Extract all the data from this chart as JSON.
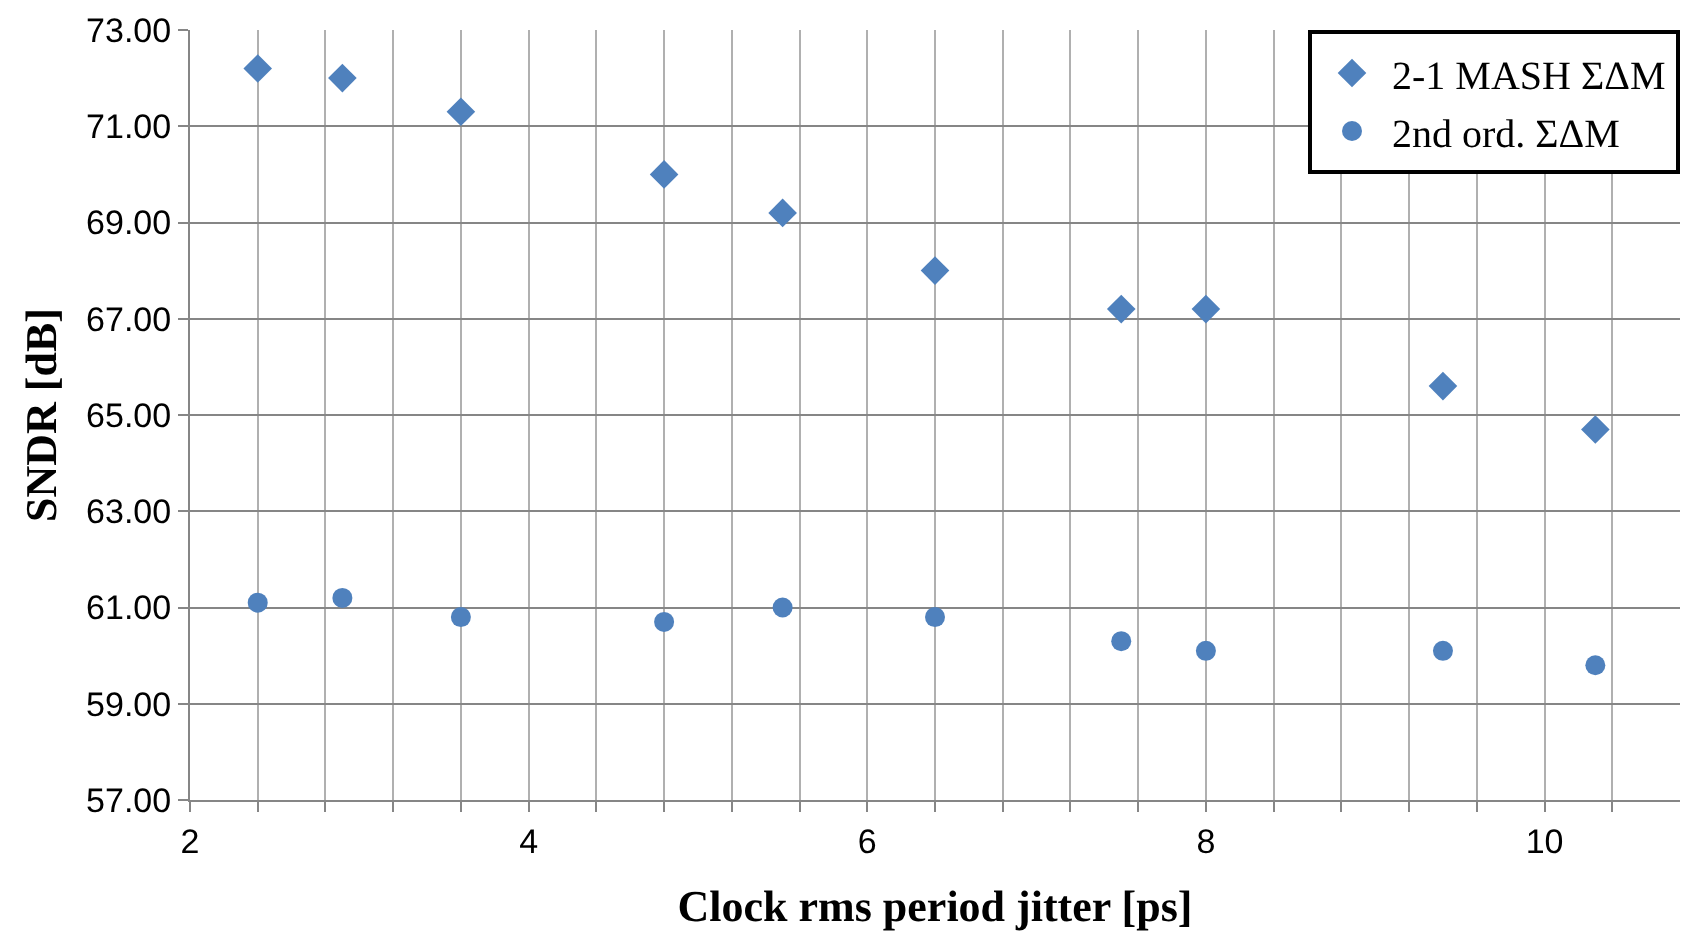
{
  "chart_data": {
    "type": "scatter",
    "xlabel": "Clock rms period jitter [ps]",
    "ylabel": "SNDR [dB]",
    "x": [
      2.4,
      2.9,
      3.6,
      4.8,
      5.5,
      6.4,
      7.5,
      8.0,
      9.4,
      10.3
    ],
    "series": [
      {
        "name": "2-1 MASH ΣΔM",
        "color": "#4f81bd",
        "marker": "diamond",
        "values": [
          72.2,
          72.0,
          71.3,
          70.0,
          69.2,
          68.0,
          67.2,
          67.2,
          65.6,
          64.7
        ]
      },
      {
        "name": "2nd ord. ΣΔM",
        "color": "#4f81bd",
        "marker": "circle",
        "values": [
          61.1,
          61.2,
          60.8,
          60.7,
          61.0,
          60.8,
          60.3,
          60.1,
          60.1,
          59.8
        ]
      }
    ],
    "xlim": [
      2,
      10.8
    ],
    "ylim": [
      57,
      73
    ],
    "xticks": [
      2,
      {
        "value": 2.4,
        "label": null
      },
      {
        "value": 2.8,
        "label": null
      },
      {
        "value": 3.2,
        "label": null
      },
      {
        "value": 3.6,
        "label": null
      },
      4,
      {
        "value": 4.4,
        "label": null
      },
      {
        "value": 4.8,
        "label": null
      },
      {
        "value": 5.2,
        "label": null
      },
      {
        "value": 5.6,
        "label": null
      },
      6,
      {
        "value": 6.4,
        "label": null
      },
      {
        "value": 6.8,
        "label": null
      },
      {
        "value": 7.2,
        "label": null
      },
      {
        "value": 7.6,
        "label": null
      },
      8,
      {
        "value": 8.4,
        "label": null
      },
      {
        "value": 8.8,
        "label": null
      },
      {
        "value": 9.2,
        "label": null
      },
      {
        "value": 9.6,
        "label": null
      },
      10,
      {
        "value": 10.4,
        "label": null
      }
    ],
    "yticks": [
      {
        "value": 57,
        "label": "57.00"
      },
      {
        "value": 59,
        "label": "59.00"
      },
      {
        "value": 61,
        "label": "61.00"
      },
      {
        "value": 63,
        "label": "63.00"
      },
      {
        "value": 65,
        "label": "65.00"
      },
      {
        "value": 67,
        "label": "67.00"
      },
      {
        "value": 69,
        "label": "69.00"
      },
      {
        "value": 71,
        "label": "71.00"
      },
      {
        "value": 73,
        "label": "73.00"
      }
    ],
    "grid": true,
    "legend": "top right"
  }
}
